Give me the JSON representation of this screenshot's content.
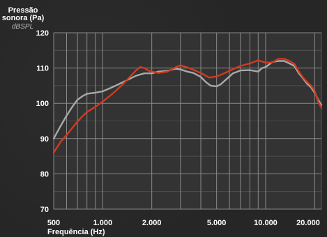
{
  "chart_data": {
    "type": "line",
    "title": "",
    "ylabel_line1": "Pressão",
    "ylabel_line2": "sonora (Pa)",
    "yunit": "dBSPL",
    "xlabel": "Frequência (Hz)",
    "xscale": "log",
    "xlim": [
      500,
      22000
    ],
    "ylim": [
      70,
      120
    ],
    "grid": true,
    "legend": "none",
    "xticks": [
      {
        "value": 500,
        "label": "500"
      },
      {
        "value": 1000,
        "label": "1.000"
      },
      {
        "value": 2000,
        "label": "2.000"
      },
      {
        "value": 5000,
        "label": "5.000"
      },
      {
        "value": 10000,
        "label": "10.000"
      },
      {
        "value": 20000,
        "label": "20.000"
      }
    ],
    "yticks": [
      70,
      80,
      90,
      100,
      110,
      120
    ],
    "series": [
      {
        "color": "#a9a9a9",
        "points": [
          [
            500,
            90
          ],
          [
            550,
            93.5
          ],
          [
            600,
            96.5
          ],
          [
            650,
            99
          ],
          [
            700,
            101
          ],
          [
            750,
            102
          ],
          [
            800,
            102.7
          ],
          [
            900,
            103
          ],
          [
            1000,
            103.4
          ],
          [
            1100,
            104.2
          ],
          [
            1200,
            105
          ],
          [
            1400,
            106.5
          ],
          [
            1600,
            107.8
          ],
          [
            1800,
            108.5
          ],
          [
            2000,
            108.5
          ],
          [
            2200,
            109
          ],
          [
            2500,
            109.2
          ],
          [
            2800,
            109.8
          ],
          [
            3000,
            109.6
          ],
          [
            3300,
            109
          ],
          [
            3600,
            108.6
          ],
          [
            4000,
            107.5
          ],
          [
            4300,
            106
          ],
          [
            4600,
            105
          ],
          [
            5000,
            104.8
          ],
          [
            5300,
            105.4
          ],
          [
            5800,
            107
          ],
          [
            6300,
            108.5
          ],
          [
            7000,
            109.3
          ],
          [
            8000,
            109.4
          ],
          [
            9000,
            109
          ],
          [
            9500,
            110
          ],
          [
            10000,
            110.3
          ],
          [
            10500,
            111
          ],
          [
            11000,
            111.7
          ],
          [
            12000,
            112
          ],
          [
            13000,
            112
          ],
          [
            14000,
            111.3
          ],
          [
            15000,
            110.6
          ],
          [
            16000,
            108.5
          ],
          [
            17000,
            107
          ],
          [
            18000,
            105.5
          ],
          [
            19000,
            104.5
          ],
          [
            20000,
            103
          ],
          [
            21000,
            101
          ],
          [
            22000,
            99.5
          ]
        ]
      },
      {
        "color": "#d43a1f",
        "points": [
          [
            500,
            86
          ],
          [
            550,
            89
          ],
          [
            600,
            91
          ],
          [
            650,
            93
          ],
          [
            700,
            94.8
          ],
          [
            750,
            96.3
          ],
          [
            800,
            97.5
          ],
          [
            900,
            99
          ],
          [
            1000,
            100.5
          ],
          [
            1100,
            102
          ],
          [
            1200,
            103.5
          ],
          [
            1300,
            105
          ],
          [
            1400,
            106.5
          ],
          [
            1600,
            109.3
          ],
          [
            1700,
            110.3
          ],
          [
            1800,
            110
          ],
          [
            1900,
            109.3
          ],
          [
            2000,
            109
          ],
          [
            2200,
            108.6
          ],
          [
            2500,
            109
          ],
          [
            2800,
            110.2
          ],
          [
            3000,
            110.8
          ],
          [
            3300,
            110.2
          ],
          [
            3600,
            109.5
          ],
          [
            4000,
            108.6
          ],
          [
            4500,
            107.3
          ],
          [
            5000,
            107.6
          ],
          [
            5500,
            108.4
          ],
          [
            6000,
            109.2
          ],
          [
            7000,
            110.6
          ],
          [
            8000,
            111.3
          ],
          [
            9000,
            112.2
          ],
          [
            10000,
            111.5
          ],
          [
            11000,
            111.6
          ],
          [
            12000,
            112.6
          ],
          [
            13000,
            112.6
          ],
          [
            14000,
            112
          ],
          [
            15000,
            111.2
          ],
          [
            16000,
            109
          ],
          [
            17000,
            107.3
          ],
          [
            18000,
            106
          ],
          [
            19000,
            105
          ],
          [
            20000,
            103.5
          ],
          [
            21000,
            100.5
          ],
          [
            22000,
            98.7
          ]
        ]
      }
    ]
  }
}
